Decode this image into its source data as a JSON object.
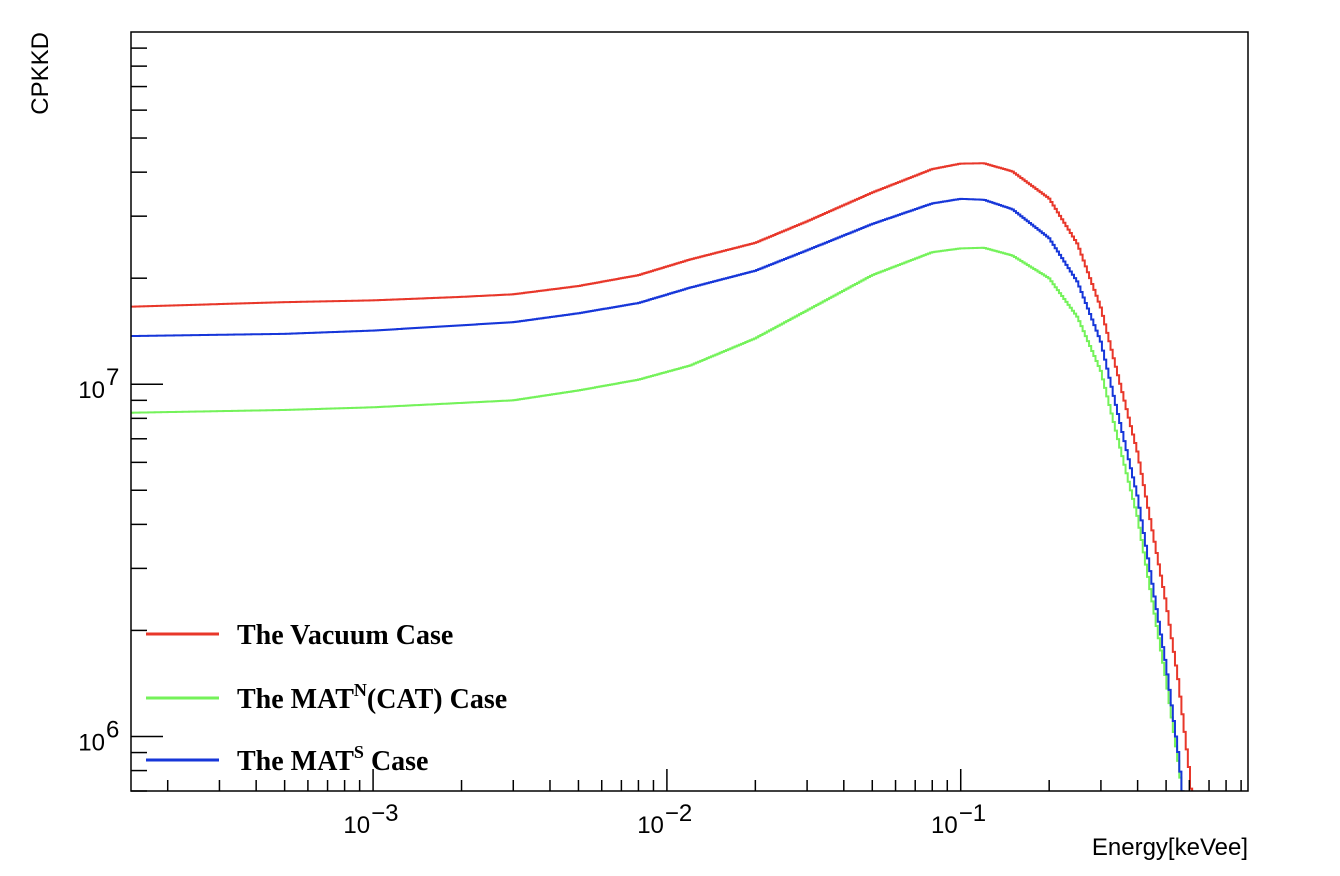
{
  "chart_data": {
    "type": "line",
    "title": "",
    "xlabel": "Energy[keVee]",
    "ylabel": "CPKKD",
    "x_scale": "log",
    "y_scale": "log",
    "xlim": [
      0.00015,
      0.95
    ],
    "ylim": [
      700000,
      100000000
    ],
    "grid": false,
    "legend_position": "bottom-left",
    "x_tick_labels": [
      {
        "value": 0.001,
        "base": "10",
        "exp": "−3"
      },
      {
        "value": 0.01,
        "base": "10",
        "exp": "−2"
      },
      {
        "value": 0.1,
        "base": "10",
        "exp": "−1"
      }
    ],
    "y_tick_labels": [
      {
        "value": 1000000,
        "base": "10",
        "exp": "6"
      },
      {
        "value": 10000000,
        "base": "10",
        "exp": "7"
      }
    ],
    "series": [
      {
        "name": "The Vacuum Case",
        "legend_parts": [
          "The Vacuum Case"
        ],
        "color": "#e8372a",
        "x": [
          0.00015,
          0.0005,
          0.001,
          0.002,
          0.003,
          0.005,
          0.008,
          0.012,
          0.02,
          0.03,
          0.05,
          0.08,
          0.1,
          0.12,
          0.15,
          0.2,
          0.25,
          0.3,
          0.4,
          0.5,
          0.55,
          0.6,
          0.62
        ],
        "values": [
          16600000,
          17100000,
          17300000,
          17700000,
          18000000,
          19000000,
          20400000,
          22600000,
          25200000,
          29000000,
          35000000,
          40800000,
          42300000,
          42400000,
          40200000,
          33700000,
          25000000,
          16500000,
          6400000,
          2400000,
          1450000,
          800000,
          600000
        ]
      },
      {
        "name": "The MAT^N(CAT) Case",
        "legend_parts": [
          "The MAT",
          "N",
          "(CAT) Case"
        ],
        "color": "#74f25a",
        "x": [
          0.00015,
          0.0005,
          0.001,
          0.002,
          0.003,
          0.005,
          0.008,
          0.012,
          0.02,
          0.03,
          0.05,
          0.08,
          0.1,
          0.12,
          0.15,
          0.2,
          0.25,
          0.3,
          0.4,
          0.5,
          0.55,
          0.58
        ],
        "values": [
          8300000,
          8450000,
          8600000,
          8850000,
          9000000,
          9600000,
          10300000,
          11300000,
          13500000,
          16200000,
          20400000,
          23700000,
          24300000,
          24400000,
          23200000,
          20000000,
          15500000,
          10900000,
          4200000,
          1450000,
          850000,
          600000
        ]
      },
      {
        "name": "The MAT^S Case",
        "legend_parts": [
          "The MAT",
          "S",
          " Case"
        ],
        "color": "#1636d9",
        "x": [
          0.00015,
          0.0005,
          0.001,
          0.002,
          0.003,
          0.005,
          0.008,
          0.012,
          0.02,
          0.03,
          0.05,
          0.08,
          0.1,
          0.12,
          0.15,
          0.2,
          0.25,
          0.3,
          0.4,
          0.5,
          0.55,
          0.58
        ],
        "values": [
          13700000,
          13900000,
          14200000,
          14700000,
          15000000,
          15900000,
          17000000,
          18800000,
          21000000,
          24000000,
          28500000,
          32600000,
          33600000,
          33400000,
          31400000,
          26000000,
          19500000,
          13200000,
          4800000,
          1600000,
          900000,
          600000
        ]
      }
    ]
  }
}
